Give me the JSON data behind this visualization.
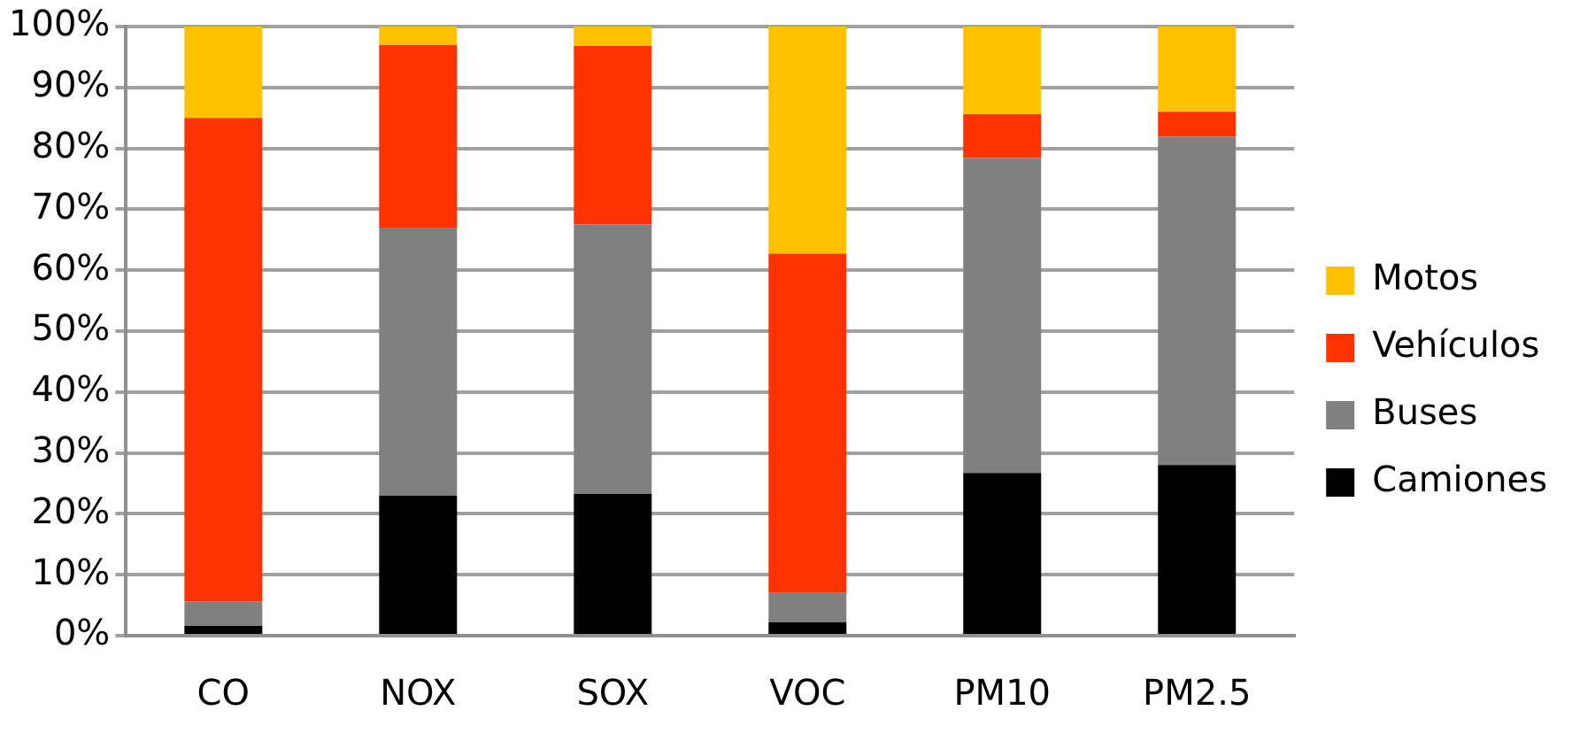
{
  "chart_data": {
    "type": "bar",
    "stacked": true,
    "categories": [
      "CO",
      "NOX",
      "SOX",
      "VOC",
      "PM10",
      "PM2.5"
    ],
    "series": [
      {
        "name": "Camiones",
        "color": "#000000",
        "values": [
          1.6,
          23,
          23.3,
          2.2,
          26.7,
          28
        ]
      },
      {
        "name": "Buses",
        "color": "#808080",
        "values": [
          4,
          44,
          44.2,
          4.8,
          51.7,
          53.9
        ]
      },
      {
        "name": "Vehículos",
        "color": "#ff3300",
        "values": [
          79.4,
          30,
          29.3,
          55.7,
          7.2,
          4.1
        ]
      },
      {
        "name": "Motos",
        "color": "#ffc000",
        "values": [
          15,
          3,
          3.2,
          37.3,
          14.4,
          14
        ]
      }
    ],
    "ylim": [
      0,
      100
    ],
    "yticks": [
      {
        "value": 0,
        "label": "0%"
      },
      {
        "value": 10,
        "label": "10%"
      },
      {
        "value": 20,
        "label": "20%"
      },
      {
        "value": 30,
        "label": "30%"
      },
      {
        "value": 40,
        "label": "40%"
      },
      {
        "value": 50,
        "label": "50%"
      },
      {
        "value": 60,
        "label": "60%"
      },
      {
        "value": 70,
        "label": "70%"
      },
      {
        "value": 80,
        "label": "80%"
      },
      {
        "value": 90,
        "label": "90%"
      },
      {
        "value": 100,
        "label": "100%"
      }
    ],
    "grid": "y",
    "legend": "right"
  }
}
